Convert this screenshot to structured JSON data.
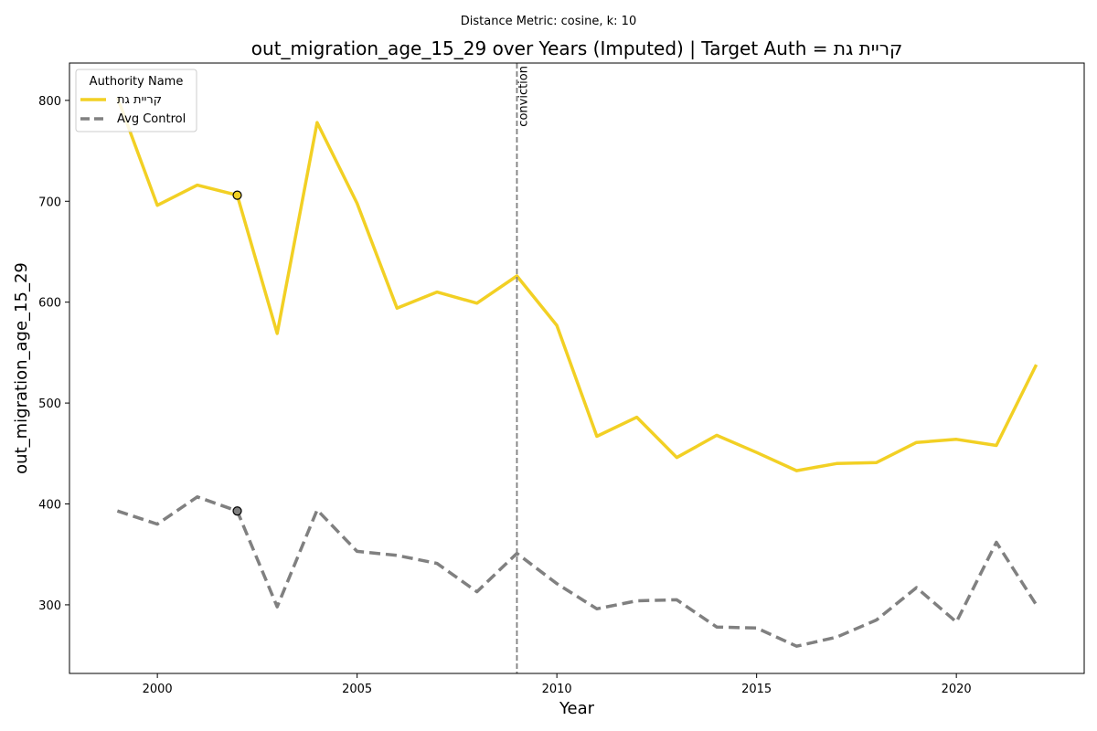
{
  "chart_data": {
    "type": "line",
    "suptitle": "Distance Metric: cosine, k: 10",
    "title": "out_migration_age_15_29 over Years (Imputed) | Target Auth = קריית גת",
    "xlabel": "Year",
    "ylabel": "out_migration_age_15_29",
    "xlim": [
      1997.8,
      2023.2
    ],
    "ylim": [
      232,
      837
    ],
    "xticks": [
      2000,
      2005,
      2010,
      2015,
      2020
    ],
    "yticks": [
      300,
      400,
      500,
      600,
      700,
      800
    ],
    "grid": false,
    "legend": {
      "title": "Authority Name",
      "placement": "top-left",
      "entries": [
        "קריית גת",
        "Avg Control"
      ]
    },
    "x": [
      1999,
      2000,
      2001,
      2002,
      2003,
      2004,
      2005,
      2006,
      2007,
      2008,
      2009,
      2010,
      2011,
      2012,
      2013,
      2014,
      2015,
      2016,
      2017,
      2018,
      2019,
      2020,
      2021,
      2022
    ],
    "series": [
      {
        "name": "קריית גת",
        "color": "#f2d024",
        "style": "solid",
        "values": [
          803,
          696,
          716,
          706,
          569,
          778,
          698,
          594,
          610,
          599,
          626,
          577,
          467,
          486,
          446,
          468,
          451,
          433,
          440,
          441,
          461,
          464,
          458,
          538
        ]
      },
      {
        "name": "Avg Control",
        "color": "#808080",
        "style": "dashed",
        "values": [
          393,
          380,
          407,
          393,
          298,
          394,
          353,
          349,
          341,
          313,
          351,
          321,
          296,
          304,
          305,
          278,
          277,
          259,
          268,
          285,
          317,
          283,
          362,
          300
        ]
      }
    ],
    "markers": [
      {
        "x": 2002,
        "y": 706,
        "color": "#f2d024"
      },
      {
        "x": 2002,
        "y": 393,
        "color": "#808080"
      }
    ],
    "vline": {
      "x": 2009,
      "label": "conviction",
      "color": "#808080"
    }
  }
}
